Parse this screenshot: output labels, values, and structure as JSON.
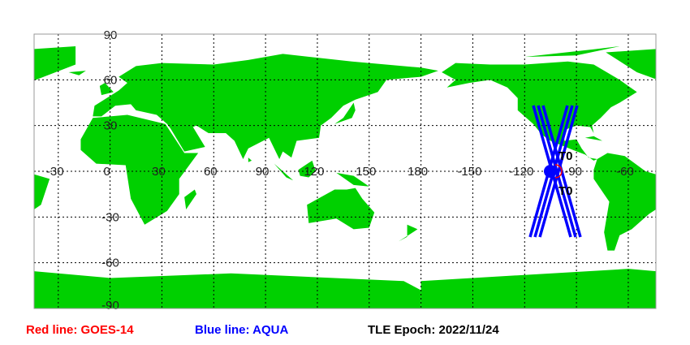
{
  "map": {
    "projection": "equirectangular",
    "land_color": "#00d000",
    "ocean_color": "#ffffff",
    "grid": "dotted",
    "lon_labels": [
      "-30",
      "0",
      "30",
      "60",
      "90",
      "120",
      "150",
      "180",
      "-150",
      "-120",
      "-90",
      "-60"
    ],
    "lat_labels": [
      "90",
      "60",
      "30",
      "-30",
      "-60",
      "-90"
    ],
    "ground_track_color": "#0000ff",
    "satellite_marker_label": "T0"
  },
  "legend": {
    "red_line": "Red line: GOES-14",
    "blue_line": "Blue line: AQUA",
    "epoch": "TLE Epoch: 2022/11/24",
    "red_color": "#ff0000",
    "blue_color": "#0000ff"
  }
}
